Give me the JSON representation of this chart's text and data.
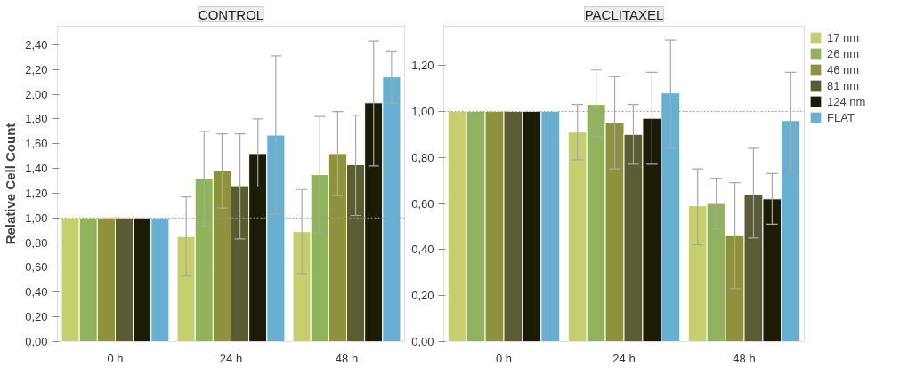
{
  "chart_data": [
    {
      "type": "bar",
      "title": "CONTROL",
      "ylabel": "Relative Cell Count",
      "categories": [
        "0 h",
        "24 h",
        "48 h"
      ],
      "ylim": [
        0,
        2.55
      ],
      "yticks": [
        {
          "value": 0,
          "label": "0,00"
        },
        {
          "value": 0.2,
          "label": "0,20"
        },
        {
          "value": 0.4,
          "label": "0,40"
        },
        {
          "value": 0.6,
          "label": "0,60"
        },
        {
          "value": 0.8,
          "label": "0,80"
        },
        {
          "value": 1.0,
          "label": "1,00"
        },
        {
          "value": 1.2,
          "label": "1,20"
        },
        {
          "value": 1.4,
          "label": "1,40"
        },
        {
          "value": 1.6,
          "label": "1,60"
        },
        {
          "value": 1.8,
          "label": "1,80"
        },
        {
          "value": 2.0,
          "label": "2,00"
        },
        {
          "value": 2.2,
          "label": "2,20"
        },
        {
          "value": 2.4,
          "label": "2,40"
        }
      ],
      "ref_lines": [
        {
          "axis": "y",
          "value": 1.0,
          "line_style": "dotted",
          "color": "#999999"
        }
      ],
      "grid": false,
      "legend": false,
      "series": [
        {
          "color": "#c6cf6e",
          "values": [
            1.0,
            0.85,
            0.89
          ],
          "errors": [
            null,
            [
              0.53,
              1.17
            ],
            [
              0.55,
              1.23
            ]
          ]
        },
        {
          "color": "#91b35e",
          "values": [
            1.0,
            1.32,
            1.35
          ],
          "errors": [
            null,
            [
              0.93,
              1.7
            ],
            [
              0.88,
              1.82
            ]
          ]
        },
        {
          "color": "#8e923d",
          "values": [
            1.0,
            1.38,
            1.52
          ],
          "errors": [
            null,
            [
              1.08,
              1.68
            ],
            [
              1.18,
              1.86
            ]
          ]
        },
        {
          "color": "#5a5c33",
          "values": [
            1.0,
            1.26,
            1.43
          ],
          "errors": [
            null,
            [
              0.83,
              1.68
            ],
            [
              1.02,
              1.83
            ]
          ]
        },
        {
          "color": "#1c1c06",
          "values": [
            1.0,
            1.52,
            1.93
          ],
          "errors": [
            null,
            [
              1.25,
              1.8
            ],
            [
              1.42,
              2.43
            ]
          ]
        },
        {
          "color": "#68b0d2",
          "values": [
            1.0,
            1.67,
            2.14
          ],
          "errors": [
            null,
            [
              1.03,
              2.31
            ],
            [
              1.93,
              2.35
            ]
          ]
        }
      ]
    },
    {
      "type": "bar",
      "title": "PACLITAXEL",
      "categories": [
        "0 h",
        "24 h",
        "48 h"
      ],
      "ylim": [
        0,
        1.37
      ],
      "yticks": [
        {
          "value": 0,
          "label": "0,00"
        },
        {
          "value": 0.2,
          "label": "0,20"
        },
        {
          "value": 0.4,
          "label": "0,40"
        },
        {
          "value": 0.6,
          "label": "0,60"
        },
        {
          "value": 0.8,
          "label": "0,80"
        },
        {
          "value": 1.0,
          "label": "1,00"
        },
        {
          "value": 1.2,
          "label": "1,20"
        }
      ],
      "ref_lines": [
        {
          "axis": "y",
          "value": 1.0,
          "line_style": "dotted",
          "color": "#999999"
        }
      ],
      "grid": false,
      "legend": "right",
      "series": [
        {
          "name": "17 nm",
          "color": "#c6cf6e",
          "values": [
            1.0,
            0.91,
            0.59
          ],
          "errors": [
            null,
            [
              0.79,
              1.03
            ],
            [
              0.42,
              0.75
            ]
          ]
        },
        {
          "name": "26 nm",
          "color": "#91b35e",
          "values": [
            1.0,
            1.03,
            0.6
          ],
          "errors": [
            null,
            [
              0.89,
              1.18
            ],
            [
              0.49,
              0.71
            ]
          ]
        },
        {
          "name": "46 nm",
          "color": "#8e923d",
          "values": [
            1.0,
            0.95,
            0.46
          ],
          "errors": [
            null,
            [
              0.75,
              1.15
            ],
            [
              0.23,
              0.69
            ]
          ]
        },
        {
          "name": "81 nm",
          "color": "#5a5c33",
          "values": [
            1.0,
            0.9,
            0.64
          ],
          "errors": [
            null,
            [
              0.77,
              1.03
            ],
            [
              0.45,
              0.84
            ]
          ]
        },
        {
          "name": "124 nm",
          "color": "#1c1c06",
          "values": [
            1.0,
            0.97,
            0.62
          ],
          "errors": [
            null,
            [
              0.77,
              1.17
            ],
            [
              0.51,
              0.73
            ]
          ]
        },
        {
          "name": "FLAT",
          "color": "#68b0d2",
          "values": [
            1.0,
            1.08,
            0.96
          ],
          "errors": [
            null,
            [
              0.84,
              1.31
            ],
            [
              0.74,
              1.17
            ]
          ]
        }
      ]
    }
  ]
}
